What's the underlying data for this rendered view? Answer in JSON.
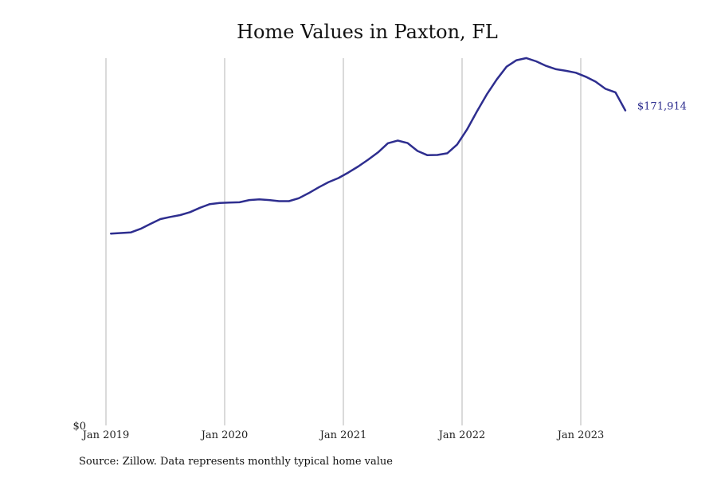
{
  "chart_data": {
    "type": "line",
    "title": "Home Values in Paxton, FL",
    "xlabel": "",
    "ylabel": "",
    "x_ticks": [
      "Jan 2019",
      "Jan 2020",
      "Jan 2021",
      "Jan 2022",
      "Jan 2023"
    ],
    "y_ticks": [
      "$0"
    ],
    "ylim": [
      0,
      200000
    ],
    "grid": "vertical",
    "line_color": "#2e2e8f",
    "end_label": "$171,914",
    "series": [
      {
        "x": [
          "2019-01",
          "2019-02",
          "2019-03",
          "2019-04",
          "2019-05",
          "2019-06",
          "2019-07",
          "2019-08",
          "2019-09",
          "2019-10",
          "2019-11",
          "2019-12",
          "2020-01",
          "2020-02",
          "2020-03",
          "2020-04",
          "2020-05",
          "2020-06",
          "2020-07",
          "2020-08",
          "2020-09",
          "2020-10",
          "2020-11",
          "2020-12",
          "2021-01",
          "2021-02",
          "2021-03",
          "2021-04",
          "2021-05",
          "2021-06",
          "2021-07",
          "2021-08",
          "2021-09",
          "2021-10",
          "2021-11",
          "2021-12",
          "2022-01",
          "2022-02",
          "2022-03",
          "2022-04",
          "2022-05",
          "2022-06",
          "2022-07",
          "2022-08",
          "2022-09",
          "2022-10",
          "2022-11",
          "2022-12",
          "2023-01",
          "2023-02",
          "2023-03",
          "2023-04",
          "2023-05"
        ],
        "values": [
          104700,
          105000,
          105300,
          107300,
          110000,
          112600,
          113800,
          114800,
          116400,
          118800,
          120800,
          121400,
          121600,
          121800,
          123000,
          123400,
          123000,
          122400,
          122400,
          124000,
          126800,
          129900,
          132800,
          135000,
          138000,
          141300,
          145000,
          149000,
          154000,
          155500,
          154100,
          149800,
          147500,
          147600,
          148500,
          153300,
          161500,
          171300,
          180600,
          188800,
          195800,
          199300,
          200500,
          198700,
          196200,
          194400,
          193500,
          192500,
          190300,
          187600,
          183700,
          181800,
          171914
        ]
      }
    ]
  },
  "source_note": "Source: Zillow. Data represents monthly typical home value"
}
